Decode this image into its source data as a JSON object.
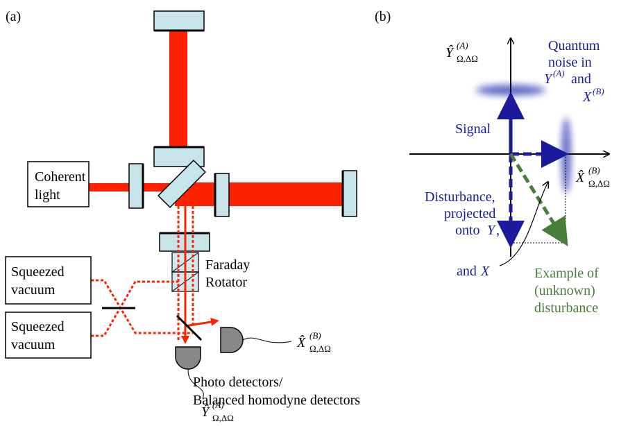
{
  "panel_a": {
    "label": "(a)",
    "coherent_light": [
      "Coherent",
      "light"
    ],
    "squeezed_vacuum_1": [
      "Squeezed",
      "vacuum"
    ],
    "squeezed_vacuum_2": [
      "Squeezed",
      "vacuum"
    ],
    "faraday_rotator": [
      "Faraday",
      "Rotator"
    ],
    "detectors": [
      "Photo detectors/",
      "Balanced homodyne detectors"
    ],
    "x_output": {
      "base": "X̂",
      "sup": "(B)",
      "sub": "Ω,ΔΩ"
    },
    "y_output": {
      "base": "Ŷ",
      "sup": "(A)",
      "sub": "Ω,ΔΩ"
    }
  },
  "panel_b": {
    "label": "(b)",
    "y_axis": {
      "base": "Ŷ",
      "sup": "(A)",
      "sub": "Ω,ΔΩ"
    },
    "x_axis": {
      "base": "X̂",
      "sup": "(B)",
      "sub": "Ω,ΔΩ"
    },
    "quantum_noise": {
      "line1": "Quantum",
      "line2": "noise in",
      "line3_var": "Y",
      "line3_sup": "(A)",
      "line3_rest": " and",
      "line4_var": "X",
      "line4_sup": "(B)"
    },
    "signal": "Signal",
    "disturbance": {
      "line1": "Disturbance,",
      "line2": "projected",
      "line3_pre": "onto ",
      "line3_var": "Y",
      "line3_post": ",",
      "line4_pre": "and ",
      "line4_var": "X"
    },
    "example": [
      "Example of",
      "(unknown)",
      "disturbance"
    ]
  }
}
